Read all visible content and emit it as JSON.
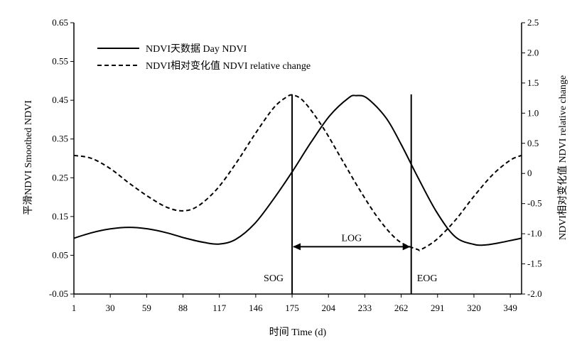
{
  "chart_data": {
    "type": "line",
    "xlabel": "时间 Time (d)",
    "ylabel_left": "平滑NDVI Smoothed NDVI",
    "ylabel_right": "NDVI相对变化值 NDVI relative change",
    "x_ticks": [
      1,
      30,
      59,
      88,
      117,
      146,
      175,
      204,
      233,
      262,
      291,
      320,
      349
    ],
    "y_left_ticks": [
      "-0.05",
      "0.05",
      "0.15",
      "0.25",
      "0.35",
      "0.45",
      "0.55",
      "0.65"
    ],
    "y_right_ticks": [
      "-2.0",
      "-1.5",
      "-1.0",
      "-0.5",
      "0",
      "0.5",
      "1.0",
      "1.5",
      "2.0",
      "2.5"
    ],
    "xlim": [
      1,
      358
    ],
    "ylim_left": [
      -0.05,
      0.65
    ],
    "ylim_right": [
      -2.0,
      2.5
    ],
    "grid": false,
    "legend_position": "top-left",
    "series": [
      {
        "name": "NDVI天数据 Day NDVI",
        "axis": "left",
        "style": "solid",
        "x": [
          1,
          15,
          30,
          45,
          60,
          75,
          90,
          105,
          117,
          130,
          145,
          160,
          175,
          190,
          205,
          220,
          226,
          235,
          250,
          262,
          275,
          290,
          305,
          320,
          330,
          340,
          349,
          358
        ],
        "y": [
          0.094,
          0.108,
          0.118,
          0.122,
          0.118,
          0.108,
          0.094,
          0.083,
          0.079,
          0.091,
          0.131,
          0.194,
          0.265,
          0.341,
          0.41,
          0.456,
          0.462,
          0.455,
          0.404,
          0.336,
          0.253,
          0.163,
          0.098,
          0.078,
          0.077,
          0.082,
          0.088,
          0.094
        ]
      },
      {
        "name": "NDVI相对变化值 NDVI relative change",
        "axis": "right",
        "style": "dashed",
        "x": [
          1,
          15,
          30,
          45,
          60,
          75,
          88,
          100,
          115,
          130,
          145,
          160,
          170,
          176,
          185,
          200,
          215,
          230,
          245,
          260,
          275,
          278,
          290,
          305,
          320,
          335,
          349,
          358
        ],
        "y": [
          0.3,
          0.25,
          0.08,
          -0.16,
          -0.38,
          -0.56,
          -0.62,
          -0.54,
          -0.26,
          0.16,
          0.64,
          1.08,
          1.26,
          1.3,
          1.18,
          0.75,
          0.22,
          -0.31,
          -0.78,
          -1.12,
          -1.26,
          -1.26,
          -1.1,
          -0.78,
          -0.38,
          -0.02,
          0.22,
          0.3
        ]
      }
    ],
    "events": [
      {
        "label": "SOG",
        "x": 175
      },
      {
        "label": "EOG",
        "x": 270
      }
    ],
    "interval": {
      "label": "LOG",
      "from": 175,
      "to": 270,
      "y_left": 0.072
    }
  }
}
